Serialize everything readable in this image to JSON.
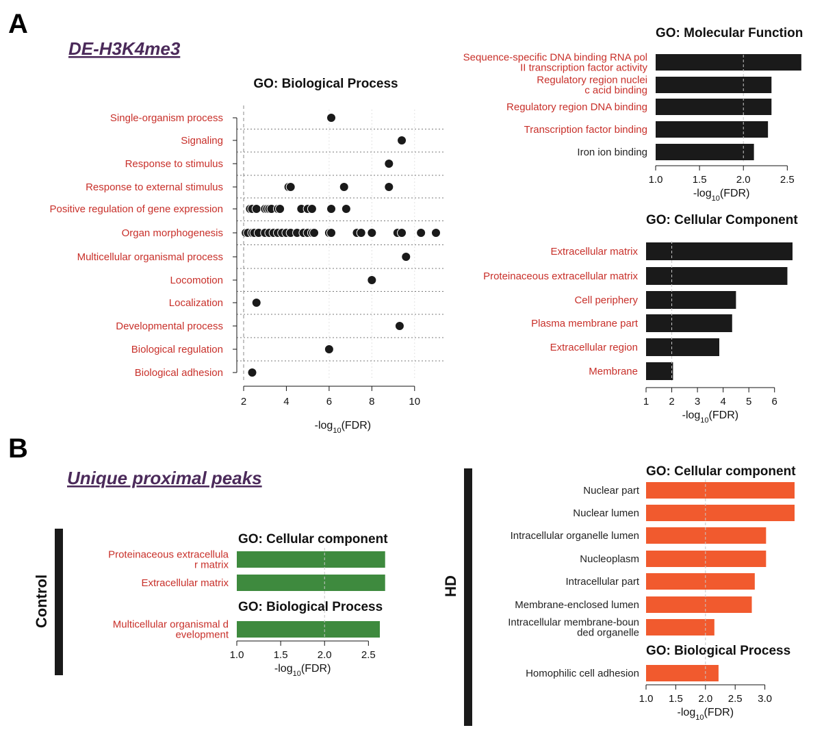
{
  "panels": {
    "a": {
      "letter": "A",
      "subtitle": "DE-H3K4me3"
    },
    "b": {
      "letter": "B",
      "subtitle": "Unique proximal peaks"
    }
  },
  "groups": {
    "control": "Control",
    "hd": "HD"
  },
  "colors": {
    "term_red": "#c8302a",
    "term_dark": "#222222",
    "black_bar": "#1a1a1a",
    "green_bar": "#3e8a3e",
    "orange_bar": "#f15a2e"
  },
  "chart_data": [
    {
      "id": "bp",
      "type": "scatter",
      "title": "GO: Biological Process",
      "xlabel": "-log10(FDR)",
      "xlim": [
        2,
        11
      ],
      "xticks": [
        2,
        4,
        6,
        8,
        10
      ],
      "threshold": 2,
      "categories": [
        "Single-organism process",
        "Signaling",
        "Response to stimulus",
        "Response to external stimulus",
        "Positive regulation of gene expression",
        "Organ morphogenesis",
        "Multicellular organismal process",
        "Locomotion",
        "Localization",
        "Developmental process",
        "Biological regulation",
        "Biological adhesion"
      ],
      "points": [
        [
          6.1
        ],
        [
          9.4
        ],
        [
          8.8
        ],
        [
          4.1,
          4.2,
          6.7,
          8.8
        ],
        [
          2.3,
          2.4,
          2.6,
          3.0,
          3.1,
          3.2,
          3.3,
          3.6,
          3.7,
          4.7,
          5.0,
          5.2,
          6.1,
          6.8
        ],
        [
          2.1,
          2.2,
          2.4,
          2.5,
          2.7,
          3.0,
          3.2,
          3.4,
          3.6,
          3.8,
          4.0,
          4.2,
          4.5,
          4.8,
          5.0,
          5.2,
          5.3,
          6.0,
          6.1,
          7.3,
          7.5,
          8.0,
          9.2,
          9.4,
          10.3,
          11.0
        ],
        [
          9.6
        ],
        [
          8.0
        ],
        [
          2.6
        ],
        [
          9.3
        ],
        [
          6.0
        ],
        [
          2.4
        ]
      ]
    },
    {
      "id": "mf",
      "type": "bar",
      "title": "GO: Molecular Function",
      "xlabel": "-log10(FDR)",
      "xlim": [
        1.0,
        2.7
      ],
      "xticks": [
        1.0,
        1.5,
        2.0,
        2.5
      ],
      "threshold": 2.0,
      "categories": [
        "Sequence-specific DNA binding RNA pol II transcription factor activity",
        "Regulatory region nucleic acid binding",
        "Regulatory region DNA binding",
        "Transcription factor binding",
        "Iron ion binding"
      ],
      "values": [
        2.66,
        2.32,
        2.32,
        2.28,
        2.12
      ]
    },
    {
      "id": "cc",
      "type": "bar",
      "title": "GO: Cellular Component",
      "xlabel": "-log10(FDR)",
      "xlim": [
        1,
        6.7
      ],
      "xticks": [
        1,
        2,
        3,
        4,
        5,
        6
      ],
      "threshold": 2,
      "categories": [
        "Extracellular matrix",
        "Proteinaceous extracellular matrix",
        "Cell periphery",
        "Plasma membrane part",
        "Extracellular region",
        "Membrane"
      ],
      "values": [
        6.7,
        6.5,
        4.5,
        4.35,
        3.85,
        2.05
      ]
    },
    {
      "id": "ctrl",
      "type": "bar",
      "title": "GO: Cellular component",
      "title2": "GO: Biological Process",
      "xlabel": "-log10(FDR)",
      "xlim": [
        1.0,
        2.7
      ],
      "xticks": [
        1.0,
        1.5,
        2.0,
        2.5
      ],
      "threshold": 2.0,
      "categories": [
        "Proteinaceous extracellular matrix",
        "Extracellular matrix",
        "Multicellular organismal development"
      ],
      "values": [
        2.69,
        2.69,
        2.63
      ]
    },
    {
      "id": "hd",
      "type": "bar",
      "title": "GO: Cellular component",
      "title2": "GO: Biological Process",
      "xlabel": "-log10(FDR)",
      "xlim": [
        1.0,
        3.5
      ],
      "xticks": [
        1.0,
        1.5,
        2.0,
        2.5,
        3.0
      ],
      "threshold": 2.0,
      "categories": [
        "Nuclear part",
        "Nuclear lumen",
        "Intracellular organelle lumen",
        "Nucleoplasm",
        "Intracellular part",
        "Membrane-enclosed lumen",
        "Intracellular membrane-bounded organelle",
        "Homophilic cell adhesion"
      ],
      "values": [
        3.5,
        3.5,
        3.02,
        3.02,
        2.83,
        2.78,
        2.15,
        2.22
      ]
    }
  ]
}
